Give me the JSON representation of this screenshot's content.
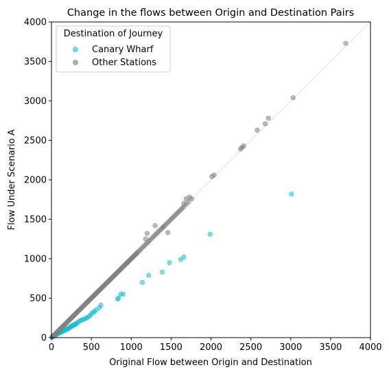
{
  "chart_data": {
    "type": "scatter",
    "title": "Change in the flows between Origin and Destination Pairs",
    "xlabel": "Original Flow between Origin and Destination",
    "ylabel": "Flow Under Scenario A",
    "xlim": [
      0,
      4000
    ],
    "ylim": [
      0,
      4000
    ],
    "x_ticks": [
      "0",
      "500",
      "1000",
      "1500",
      "2000",
      "2500",
      "3000",
      "3500",
      "4000"
    ],
    "y_ticks": [
      "0",
      "500",
      "1000",
      "1500",
      "2000",
      "2500",
      "3000",
      "3500",
      "4000"
    ],
    "grid": false,
    "reference_line": "y = x",
    "legend": {
      "title": "Destination of Journey",
      "placement": "top-left",
      "entries": [
        "Canary Wharf",
        "Other Stations"
      ]
    },
    "series": [
      {
        "name": "Canary Wharf",
        "color": "#17becf",
        "points": [
          [
            10,
            5
          ],
          [
            20,
            12
          ],
          [
            30,
            20
          ],
          [
            40,
            25
          ],
          [
            50,
            30
          ],
          [
            60,
            35
          ],
          [
            70,
            45
          ],
          [
            80,
            50
          ],
          [
            90,
            55
          ],
          [
            100,
            60
          ],
          [
            110,
            65
          ],
          [
            120,
            70
          ],
          [
            130,
            75
          ],
          [
            140,
            80
          ],
          [
            150,
            85
          ],
          [
            160,
            90
          ],
          [
            170,
            95
          ],
          [
            180,
            100
          ],
          [
            190,
            105
          ],
          [
            200,
            110
          ],
          [
            210,
            115
          ],
          [
            220,
            120
          ],
          [
            230,
            130
          ],
          [
            240,
            135
          ],
          [
            250,
            140
          ],
          [
            260,
            150
          ],
          [
            270,
            155
          ],
          [
            280,
            160
          ],
          [
            290,
            165
          ],
          [
            300,
            170
          ],
          [
            310,
            175
          ],
          [
            320,
            185
          ],
          [
            340,
            200
          ],
          [
            360,
            215
          ],
          [
            380,
            225
          ],
          [
            400,
            230
          ],
          [
            420,
            240
          ],
          [
            440,
            250
          ],
          [
            460,
            260
          ],
          [
            480,
            275
          ],
          [
            500,
            300
          ],
          [
            520,
            320
          ],
          [
            540,
            330
          ],
          [
            560,
            350
          ],
          [
            600,
            380
          ],
          [
            620,
            410
          ],
          [
            830,
            490
          ],
          [
            840,
            500
          ],
          [
            870,
            550
          ],
          [
            900,
            550
          ],
          [
            1140,
            700
          ],
          [
            1220,
            790
          ],
          [
            1390,
            830
          ],
          [
            1480,
            950
          ],
          [
            1620,
            990
          ],
          [
            1660,
            1020
          ],
          [
            1990,
            1310
          ],
          [
            3010,
            1820
          ]
        ]
      },
      {
        "name": "Other Stations",
        "color": "#7f7f7f",
        "points": [
          [
            10,
            10
          ],
          [
            20,
            20
          ],
          [
            30,
            30
          ],
          [
            40,
            40
          ],
          [
            50,
            50
          ],
          [
            60,
            60
          ],
          [
            70,
            70
          ],
          [
            80,
            80
          ],
          [
            90,
            90
          ],
          [
            100,
            100
          ],
          [
            110,
            110
          ],
          [
            120,
            120
          ],
          [
            130,
            130
          ],
          [
            140,
            140
          ],
          [
            150,
            150
          ],
          [
            160,
            160
          ],
          [
            170,
            170
          ],
          [
            180,
            180
          ],
          [
            190,
            190
          ],
          [
            200,
            200
          ],
          [
            210,
            210
          ],
          [
            220,
            220
          ],
          [
            230,
            230
          ],
          [
            240,
            240
          ],
          [
            250,
            250
          ],
          [
            260,
            260
          ],
          [
            270,
            270
          ],
          [
            280,
            280
          ],
          [
            290,
            290
          ],
          [
            300,
            300
          ],
          [
            310,
            310
          ],
          [
            320,
            320
          ],
          [
            330,
            330
          ],
          [
            340,
            340
          ],
          [
            350,
            350
          ],
          [
            360,
            360
          ],
          [
            370,
            370
          ],
          [
            380,
            380
          ],
          [
            390,
            390
          ],
          [
            400,
            400
          ],
          [
            410,
            410
          ],
          [
            420,
            420
          ],
          [
            430,
            430
          ],
          [
            440,
            440
          ],
          [
            450,
            450
          ],
          [
            460,
            460
          ],
          [
            470,
            470
          ],
          [
            480,
            480
          ],
          [
            490,
            490
          ],
          [
            500,
            500
          ],
          [
            510,
            510
          ],
          [
            520,
            520
          ],
          [
            530,
            530
          ],
          [
            540,
            540
          ],
          [
            550,
            550
          ],
          [
            560,
            560
          ],
          [
            570,
            570
          ],
          [
            580,
            580
          ],
          [
            590,
            590
          ],
          [
            600,
            600
          ],
          [
            610,
            610
          ],
          [
            620,
            620
          ],
          [
            630,
            630
          ],
          [
            640,
            640
          ],
          [
            650,
            650
          ],
          [
            660,
            660
          ],
          [
            670,
            670
          ],
          [
            680,
            680
          ],
          [
            690,
            690
          ],
          [
            700,
            700
          ],
          [
            710,
            710
          ],
          [
            720,
            720
          ],
          [
            730,
            730
          ],
          [
            740,
            740
          ],
          [
            750,
            750
          ],
          [
            760,
            760
          ],
          [
            770,
            770
          ],
          [
            780,
            780
          ],
          [
            790,
            790
          ],
          [
            800,
            800
          ],
          [
            810,
            810
          ],
          [
            820,
            820
          ],
          [
            830,
            830
          ],
          [
            840,
            840
          ],
          [
            850,
            850
          ],
          [
            860,
            860
          ],
          [
            870,
            870
          ],
          [
            880,
            880
          ],
          [
            890,
            890
          ],
          [
            900,
            900
          ],
          [
            910,
            910
          ],
          [
            920,
            920
          ],
          [
            930,
            930
          ],
          [
            940,
            940
          ],
          [
            950,
            950
          ],
          [
            960,
            960
          ],
          [
            970,
            970
          ],
          [
            980,
            980
          ],
          [
            990,
            990
          ],
          [
            1000,
            1000
          ],
          [
            1010,
            1010
          ],
          [
            1020,
            1020
          ],
          [
            1030,
            1030
          ],
          [
            1040,
            1040
          ],
          [
            1050,
            1050
          ],
          [
            1060,
            1060
          ],
          [
            1070,
            1070
          ],
          [
            1080,
            1080
          ],
          [
            1100,
            1100
          ],
          [
            1120,
            1120
          ],
          [
            1140,
            1140
          ],
          [
            1160,
            1160
          ],
          [
            1180,
            1180
          ],
          [
            1200,
            1200
          ],
          [
            1220,
            1220
          ],
          [
            1240,
            1240
          ],
          [
            1260,
            1260
          ],
          [
            1280,
            1280
          ],
          [
            1300,
            1300
          ],
          [
            1320,
            1320
          ],
          [
            1340,
            1340
          ],
          [
            1360,
            1360
          ],
          [
            1380,
            1380
          ],
          [
            1400,
            1400
          ],
          [
            1420,
            1420
          ],
          [
            1440,
            1440
          ],
          [
            1460,
            1460
          ],
          [
            1480,
            1480
          ],
          [
            1500,
            1500
          ],
          [
            1520,
            1520
          ],
          [
            1540,
            1540
          ],
          [
            1560,
            1560
          ],
          [
            1580,
            1580
          ],
          [
            1600,
            1600
          ],
          [
            1620,
            1620
          ],
          [
            1640,
            1640
          ],
          [
            1660,
            1660
          ],
          [
            1690,
            1690
          ],
          [
            1720,
            1720
          ],
          [
            1760,
            1760
          ],
          [
            1300,
            1420
          ],
          [
            1400,
            1400
          ],
          [
            1460,
            1330
          ],
          [
            1200,
            1320
          ],
          [
            1180,
            1250
          ],
          [
            1660,
            1700
          ],
          [
            1690,
            1760
          ],
          [
            1730,
            1780
          ],
          [
            2010,
            2040
          ],
          [
            2040,
            2060
          ],
          [
            2370,
            2390
          ],
          [
            2390,
            2410
          ],
          [
            2410,
            2430
          ],
          [
            2580,
            2630
          ],
          [
            2680,
            2710
          ],
          [
            2720,
            2780
          ],
          [
            3030,
            3040
          ],
          [
            3690,
            3730
          ]
        ]
      }
    ]
  }
}
